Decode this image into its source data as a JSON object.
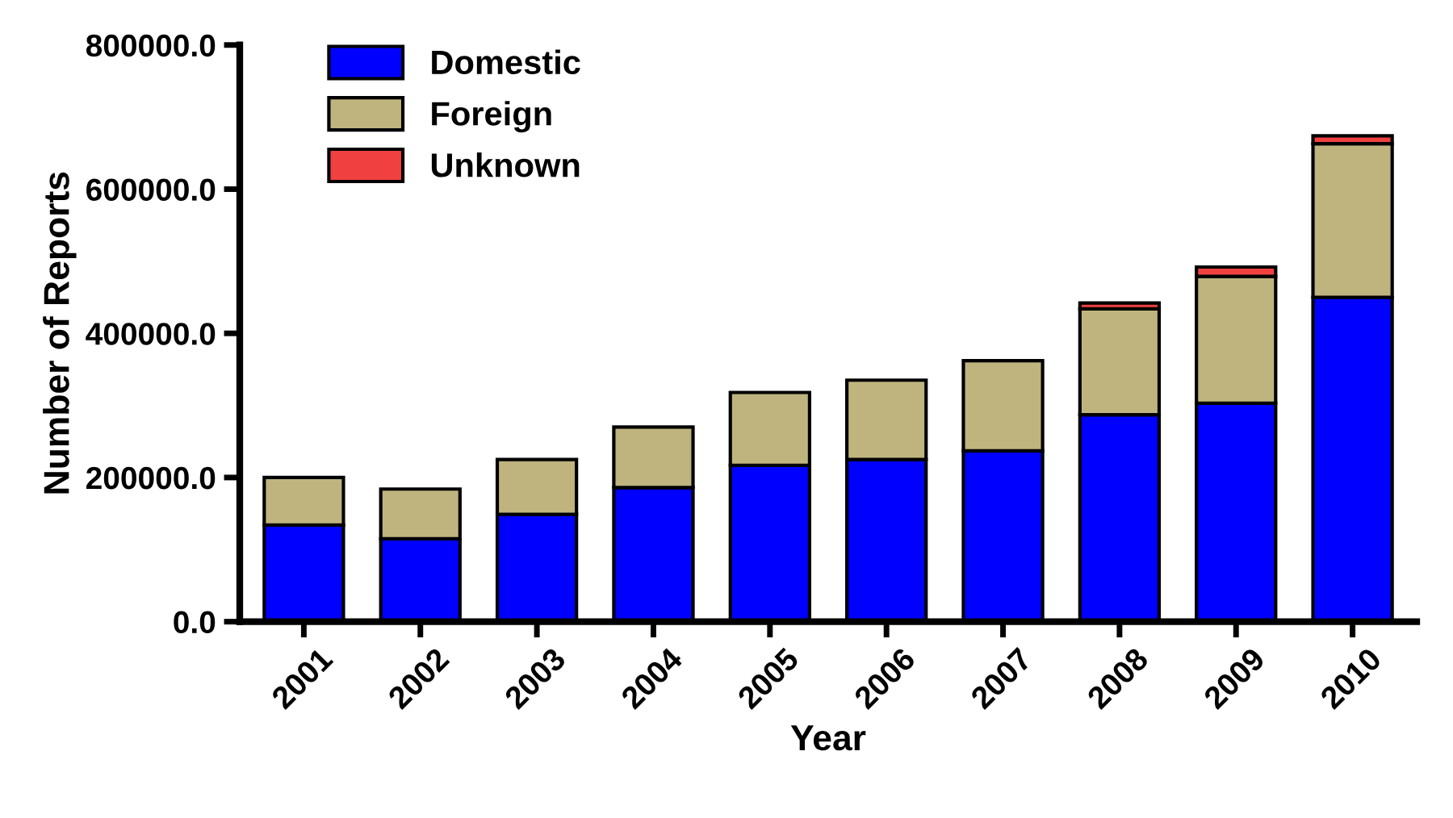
{
  "chart_data": {
    "type": "bar",
    "stacked": true,
    "xlabel": "Year",
    "ylabel": "Number of Reports",
    "categories": [
      "2001",
      "2002",
      "2003",
      "2004",
      "2005",
      "2006",
      "2007",
      "2008",
      "2009",
      "2010"
    ],
    "series": [
      {
        "name": "Domestic",
        "color": "#0000ff",
        "values": [
          134000,
          115000,
          149000,
          186000,
          217000,
          225000,
          237000,
          287000,
          303000,
          450000
        ]
      },
      {
        "name": "Foreign",
        "color": "#bfb47e",
        "values": [
          66000,
          69000,
          76000,
          84000,
          101000,
          110000,
          125000,
          147000,
          176000,
          213000
        ]
      },
      {
        "name": "Unknown",
        "color": "#f04040",
        "values": [
          null,
          null,
          null,
          null,
          null,
          null,
          null,
          8000,
          13000,
          11000
        ]
      }
    ],
    "ylim": [
      0,
      800000
    ],
    "yticks": [
      {
        "value": 0,
        "label": "0.0"
      },
      {
        "value": 200000,
        "label": "200000.0"
      },
      {
        "value": 400000,
        "label": "400000.0"
      },
      {
        "value": 600000,
        "label": "600000.0"
      },
      {
        "value": 800000,
        "label": "800000.0"
      }
    ],
    "grid": false,
    "legend": "top left"
  }
}
